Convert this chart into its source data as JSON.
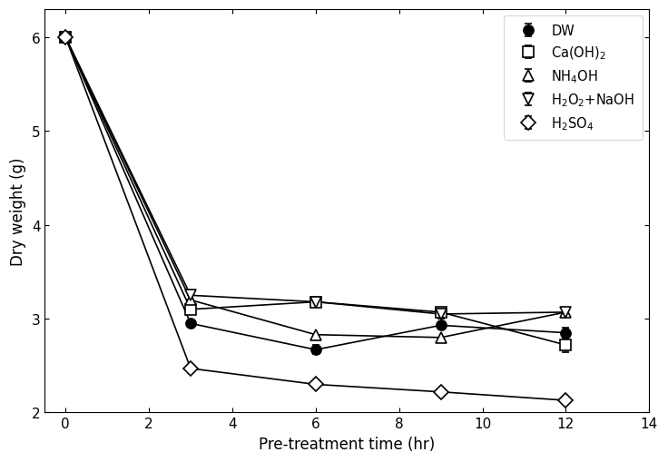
{
  "x": [
    0,
    3,
    6,
    9,
    12
  ],
  "series": {
    "DW": {
      "y": [
        6.0,
        2.95,
        2.67,
        2.93,
        2.85
      ],
      "yerr": [
        0.0,
        0.0,
        0.05,
        0.0,
        0.05
      ],
      "marker": "o",
      "filled": true,
      "label": "DW"
    },
    "Ca(OH)2": {
      "y": [
        6.0,
        3.1,
        3.18,
        3.07,
        2.72
      ],
      "yerr": [
        0.0,
        0.0,
        0.05,
        0.05,
        0.08
      ],
      "marker": "s",
      "filled": false,
      "label": "Ca(OH)$_2$"
    },
    "NH4OH": {
      "y": [
        6.0,
        3.2,
        2.83,
        2.8,
        3.07
      ],
      "yerr": [
        0.0,
        0.0,
        0.0,
        0.0,
        0.05
      ],
      "marker": "^",
      "filled": false,
      "label": "NH$_4$OH"
    },
    "H2O2+NaOH": {
      "y": [
        6.0,
        3.25,
        3.18,
        3.05,
        3.07
      ],
      "yerr": [
        0.0,
        0.0,
        0.03,
        0.05,
        0.05
      ],
      "marker": "v",
      "filled": false,
      "label": "H$_2$O$_2$+NaOH"
    },
    "H2SO4": {
      "y": [
        6.0,
        2.47,
        2.3,
        2.22,
        2.13
      ],
      "yerr": [
        0.0,
        0.0,
        0.0,
        0.0,
        0.0
      ],
      "marker": "D",
      "filled": false,
      "label": "H$_2$SO$_4$"
    }
  },
  "xlabel": "Pre-treatment time (hr)",
  "ylabel": "Dry weight (g)",
  "xlim": [
    -0.5,
    14
  ],
  "ylim": [
    2.0,
    6.3
  ],
  "xticks": [
    0,
    2,
    4,
    6,
    8,
    10,
    12,
    14
  ],
  "yticks": [
    2.0,
    3.0,
    4.0,
    5.0,
    6.0
  ],
  "legend_loc": "upper right",
  "background_color": "#ffffff"
}
